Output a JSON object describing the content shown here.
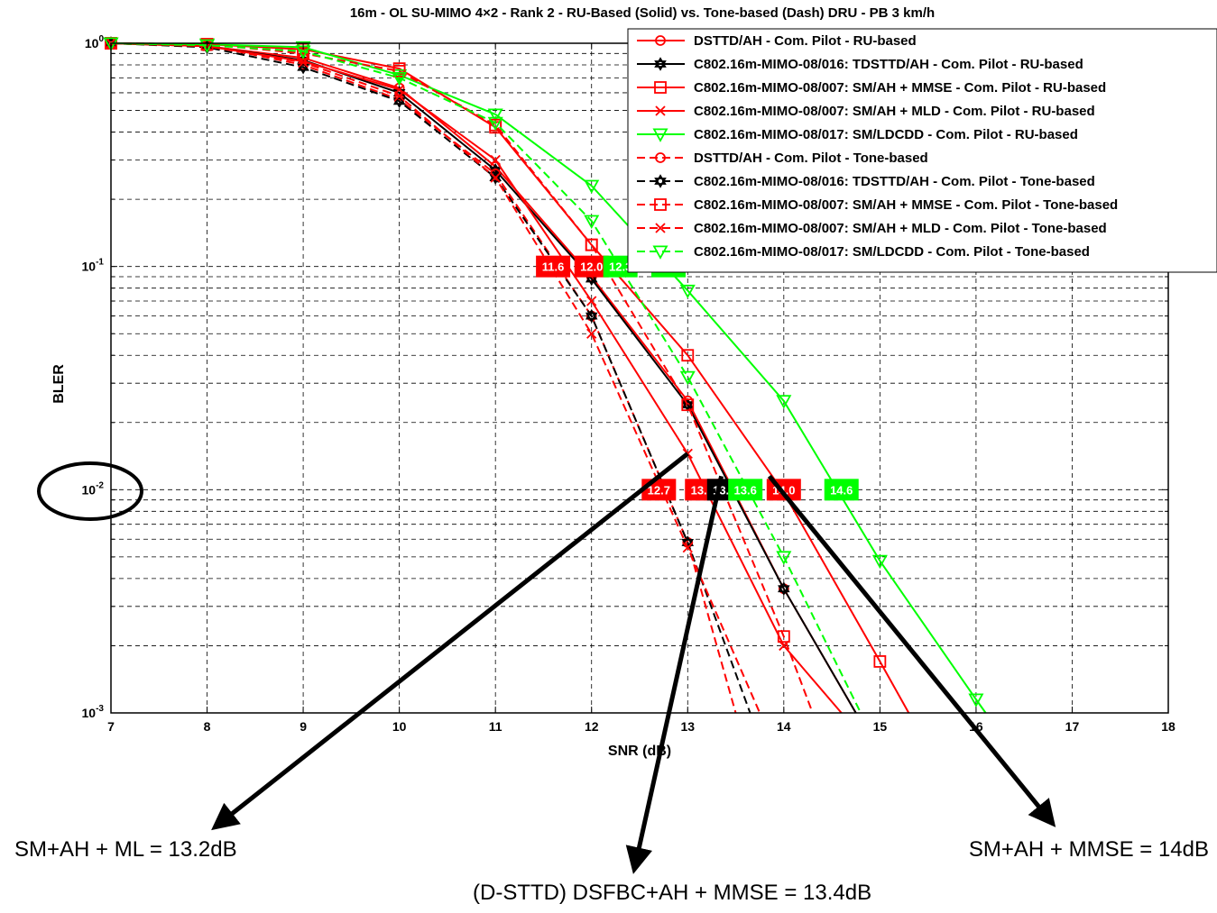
{
  "chart_data": {
    "type": "line",
    "title": "16m - OL SU-MIMO 4×2 - Rank 2 - RU-Based (Solid) vs. Tone-based (Dash) DRU - PB 3 km/h",
    "xlabel": "SNR (dB)",
    "ylabel": "BLER",
    "xlim": [
      7,
      18
    ],
    "ylim": [
      0.001,
      1
    ],
    "yscale": "log",
    "grid": true,
    "legend_position": "top-right",
    "x_ticks": [
      "7",
      "8",
      "9",
      "10",
      "11",
      "12",
      "13",
      "14",
      "15",
      "16",
      "17",
      "18"
    ],
    "y_ticks": [
      {
        "base": "10",
        "exp": "0",
        "value": 1
      },
      {
        "base": "10",
        "exp": "-1",
        "value": 0.1
      },
      {
        "base": "10",
        "exp": "-2",
        "value": 0.01
      },
      {
        "base": "10",
        "exp": "-3",
        "value": 0.001
      }
    ],
    "series": [
      {
        "name": "DSTTD/AH - Com. Pilot - RU-based",
        "color": "#ff0000",
        "dash": "solid",
        "marker": "circle",
        "points": [
          [
            7,
            1.0
          ],
          [
            8,
            0.97
          ],
          [
            9,
            0.86
          ],
          [
            10,
            0.63
          ],
          [
            11,
            0.28
          ],
          [
            12,
            0.09
          ],
          [
            13,
            0.025
          ],
          [
            14,
            0.0036
          ],
          [
            14.75,
            0.001
          ]
        ],
        "marker_x": [
          7,
          8,
          9,
          10,
          11,
          12,
          13,
          14
        ]
      },
      {
        "name": "C802.16m-MIMO-08/016: TDSTTD/AH - Com. Pilot - RU-based",
        "color": "#000000",
        "dash": "solid",
        "marker": "hexagram",
        "points": [
          [
            7,
            1.0
          ],
          [
            8,
            0.97
          ],
          [
            9,
            0.84
          ],
          [
            10,
            0.6
          ],
          [
            11,
            0.27
          ],
          [
            12,
            0.088
          ],
          [
            13,
            0.024
          ],
          [
            14,
            0.0036
          ],
          [
            14.75,
            0.001
          ]
        ],
        "marker_x": [
          7,
          8,
          9,
          10,
          11,
          12,
          13,
          14
        ]
      },
      {
        "name": "C802.16m-MIMO-08/007: SM/AH + MMSE - Com. Pilot - RU-based",
        "color": "#ff0000",
        "dash": "solid",
        "marker": "square",
        "points": [
          [
            7,
            1.0
          ],
          [
            8,
            0.99
          ],
          [
            9,
            0.94
          ],
          [
            10,
            0.77
          ],
          [
            11,
            0.42
          ],
          [
            12,
            0.125
          ],
          [
            13,
            0.04
          ],
          [
            14,
            0.0097
          ],
          [
            15,
            0.0017
          ],
          [
            15.3,
            0.001
          ]
        ],
        "marker_x": [
          7,
          8,
          9,
          10,
          11,
          12,
          13,
          14,
          15
        ]
      },
      {
        "name": "C802.16m-MIMO-08/007: SM/AH + MLD - Com. Pilot - RU-based",
        "color": "#ff0000",
        "dash": "solid",
        "marker": "x",
        "points": [
          [
            7,
            1.0
          ],
          [
            8,
            0.97
          ],
          [
            9,
            0.83
          ],
          [
            10,
            0.62
          ],
          [
            11,
            0.3
          ],
          [
            12,
            0.07
          ],
          [
            13,
            0.0145
          ],
          [
            14,
            0.002
          ],
          [
            14.6,
            0.001
          ]
        ],
        "marker_x": [
          7,
          8,
          9,
          10,
          11,
          12,
          13,
          14
        ]
      },
      {
        "name": "C802.16m-MIMO-08/017: SM/LDCDD - Com. Pilot - RU-based",
        "color": "#00ff00",
        "dash": "solid",
        "marker": "triangle-down",
        "points": [
          [
            7,
            1.0
          ],
          [
            8,
            0.99
          ],
          [
            9,
            0.96
          ],
          [
            10,
            0.72
          ],
          [
            11,
            0.48
          ],
          [
            12,
            0.23
          ],
          [
            13,
            0.078
          ],
          [
            14,
            0.025
          ],
          [
            15,
            0.0048
          ],
          [
            16,
            0.00115
          ],
          [
            16.1,
            0.001
          ]
        ],
        "marker_x": [
          7,
          8,
          9,
          10,
          11,
          12,
          13,
          14,
          15,
          16
        ]
      },
      {
        "name": "DSTTD/AH - Com. Pilot - Tone-based",
        "color": "#ff0000",
        "dash": "dashed",
        "marker": "circle",
        "points": [
          [
            7,
            1.0
          ],
          [
            8,
            0.98
          ],
          [
            9,
            0.8
          ],
          [
            10,
            0.56
          ],
          [
            11,
            0.26
          ],
          [
            12,
            0.06
          ],
          [
            13,
            0.0058
          ],
          [
            13.5,
            0.001
          ]
        ],
        "marker_x": [
          7,
          8,
          9,
          10,
          11,
          12,
          13
        ]
      },
      {
        "name": "C802.16m-MIMO-08/016: TDSTTD/AH - Com. Pilot - Tone-based",
        "color": "#000000",
        "dash": "dashed",
        "marker": "hexagram",
        "points": [
          [
            7,
            1.0
          ],
          [
            8,
            0.96
          ],
          [
            9,
            0.78
          ],
          [
            10,
            0.55
          ],
          [
            11,
            0.25
          ],
          [
            12,
            0.06
          ],
          [
            13,
            0.0058
          ],
          [
            13.65,
            0.001
          ]
        ],
        "marker_x": [
          7,
          8,
          9,
          10,
          11,
          12,
          13
        ]
      },
      {
        "name": "C802.16m-MIMO-08/007: SM/AH  + MMSE - Com. Pilot - Tone-based",
        "color": "#ff0000",
        "dash": "dashed",
        "marker": "square",
        "points": [
          [
            7,
            1.0
          ],
          [
            8,
            0.99
          ],
          [
            9,
            0.9
          ],
          [
            10,
            0.75
          ],
          [
            11,
            0.43
          ],
          [
            12,
            0.125
          ],
          [
            13,
            0.024
          ],
          [
            14,
            0.0022
          ],
          [
            14.3,
            0.001
          ]
        ],
        "marker_x": [
          7,
          8,
          9,
          10,
          11,
          12,
          13,
          14
        ]
      },
      {
        "name": "C802.16m-MIMO-08/007: SM/AH  + MLD - Com. Pilot - Tone-based",
        "color": "#ff0000",
        "dash": "dashed",
        "marker": "x",
        "points": [
          [
            7,
            1.0
          ],
          [
            8,
            0.97
          ],
          [
            9,
            0.82
          ],
          [
            10,
            0.58
          ],
          [
            11,
            0.25
          ],
          [
            12,
            0.05
          ],
          [
            13,
            0.0055
          ],
          [
            13.75,
            0.001
          ]
        ],
        "marker_x": [
          7,
          8,
          9,
          10,
          11,
          12,
          13
        ]
      },
      {
        "name": "C802.16m-MIMO-08/017: SM/LDCDD - Com. Pilot - Tone-based",
        "color": "#00ff00",
        "dash": "dashed",
        "marker": "triangle-down",
        "points": [
          [
            7,
            1.0
          ],
          [
            8,
            0.98
          ],
          [
            9,
            0.92
          ],
          [
            10,
            0.7
          ],
          [
            11,
            0.44
          ],
          [
            12,
            0.16
          ],
          [
            13,
            0.032
          ],
          [
            14,
            0.005
          ],
          [
            14.8,
            0.001
          ]
        ],
        "marker_x": [
          7,
          8,
          9,
          10,
          11,
          12,
          13,
          14
        ]
      }
    ],
    "annotations": [
      {
        "text": "11.6",
        "x": 11.6,
        "y": 0.1,
        "bg": "#ff0000"
      },
      {
        "text": "12.0",
        "x": 12.0,
        "y": 0.1,
        "bg": "#ff0000"
      },
      {
        "text": "12.3",
        "x": 12.3,
        "y": 0.1,
        "bg": "#00ff00"
      },
      {
        "text": "12.8",
        "x": 12.8,
        "y": 0.1,
        "bg": "#00ff00"
      },
      {
        "text": "12.7",
        "x": 12.7,
        "y": 0.01,
        "bg": "#ff0000"
      },
      {
        "text": "13.2",
        "x": 13.15,
        "y": 0.01,
        "bg": "#ff0000"
      },
      {
        "text": "13.4",
        "x": 13.38,
        "y": 0.01,
        "bg": "#000000"
      },
      {
        "text": "13.6",
        "x": 13.6,
        "y": 0.01,
        "bg": "#00ff00"
      },
      {
        "text": "14.0",
        "x": 14.0,
        "y": 0.01,
        "bg": "#ff0000"
      },
      {
        "text": "14.6",
        "x": 14.6,
        "y": 0.01,
        "bg": "#00ff00"
      }
    ],
    "callouts": [
      {
        "text": "SM+AH + ML = 13.2dB",
        "from": [
          13.0,
          0.0145
        ]
      },
      {
        "text": "(D-STTD) DSFBC+AH + MMSE = 13.4dB",
        "from": [
          13.35,
          0.0115
        ]
      },
      {
        "text": "SM+AH + MMSE = 14dB",
        "from": [
          13.85,
          0.0115
        ]
      }
    ]
  }
}
